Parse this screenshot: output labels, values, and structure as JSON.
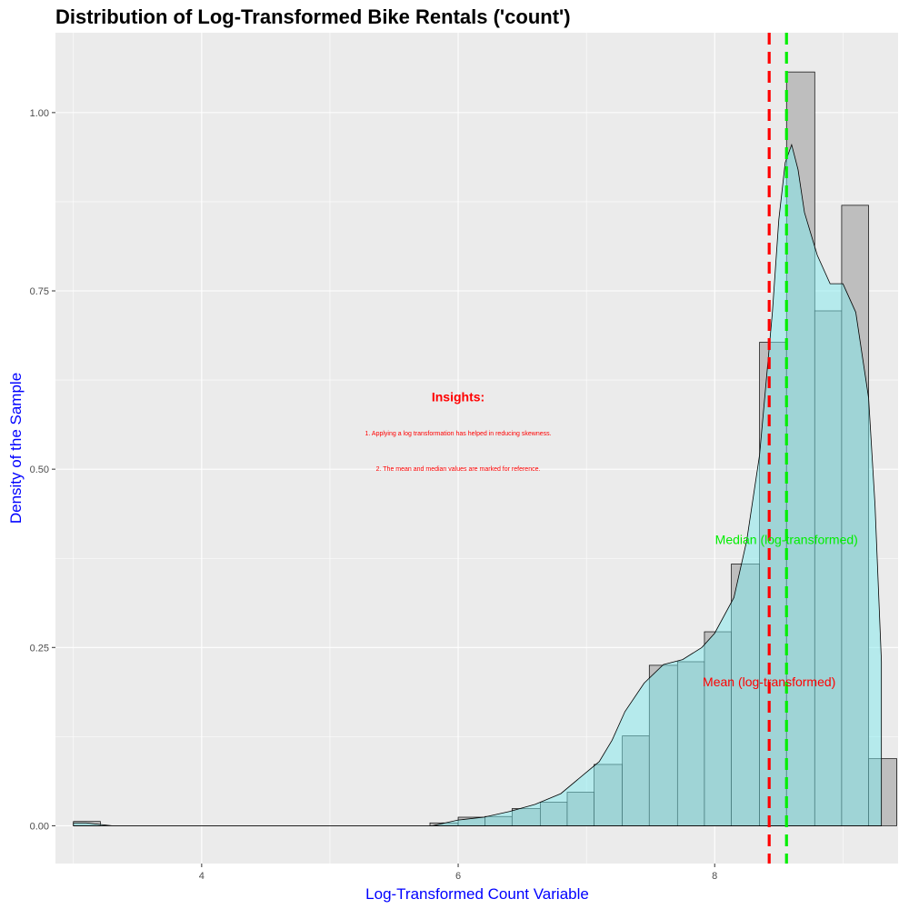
{
  "chart_data": {
    "type": "bar",
    "title": "Distribution of Log-Transformed Bike Rentals ('count')",
    "xlabel": "Log-Transformed Count Variable",
    "ylabel": "Density of the Sample",
    "xlim": [
      2.86,
      9.43
    ],
    "ylim": [
      -0.053,
      1.112
    ],
    "x_ticks": [
      4,
      6,
      8
    ],
    "y_ticks": [
      0.0,
      0.25,
      0.5,
      0.75,
      1.0
    ],
    "y_tick_labels": [
      "0.00",
      "0.25",
      "0.50",
      "0.75",
      "1.00"
    ],
    "grid": true,
    "colors": {
      "panel": "#ebebeb",
      "grid": "#ffffff",
      "histogram_fill": "#bebebe",
      "density_fill": "#7fe9ee",
      "mean_line": "#ff0000",
      "median_line": "#00ee00",
      "axis_title": "#0000ff",
      "insight_text": "#ff0000"
    },
    "histogram": {
      "bin_width": 0.2137,
      "bins": [
        {
          "x0": 3.0,
          "x1": 3.21,
          "density": 0.006
        },
        {
          "x0": 3.21,
          "x1": 3.43,
          "density": 0.0
        },
        {
          "x0": 3.43,
          "x1": 3.64,
          "density": 0.0
        },
        {
          "x0": 3.64,
          "x1": 3.86,
          "density": 0.0
        },
        {
          "x0": 3.86,
          "x1": 4.07,
          "density": 0.0
        },
        {
          "x0": 4.07,
          "x1": 4.28,
          "density": 0.0
        },
        {
          "x0": 4.28,
          "x1": 4.5,
          "density": 0.0
        },
        {
          "x0": 4.5,
          "x1": 4.71,
          "density": 0.0
        },
        {
          "x0": 4.71,
          "x1": 4.93,
          "density": 0.0
        },
        {
          "x0": 4.93,
          "x1": 5.14,
          "density": 0.0
        },
        {
          "x0": 5.14,
          "x1": 5.35,
          "density": 0.0
        },
        {
          "x0": 5.35,
          "x1": 5.57,
          "density": 0.0
        },
        {
          "x0": 5.57,
          "x1": 5.78,
          "density": 0.0
        },
        {
          "x0": 5.78,
          "x1": 6.0,
          "density": 0.004
        },
        {
          "x0": 6.0,
          "x1": 6.21,
          "density": 0.012
        },
        {
          "x0": 6.21,
          "x1": 6.42,
          "density": 0.013
        },
        {
          "x0": 6.42,
          "x1": 6.64,
          "density": 0.024
        },
        {
          "x0": 6.64,
          "x1": 6.85,
          "density": 0.033
        },
        {
          "x0": 6.85,
          "x1": 7.06,
          "density": 0.047
        },
        {
          "x0": 7.06,
          "x1": 7.28,
          "density": 0.086
        },
        {
          "x0": 7.28,
          "x1": 7.49,
          "density": 0.126
        },
        {
          "x0": 7.49,
          "x1": 7.71,
          "density": 0.225
        },
        {
          "x0": 7.71,
          "x1": 7.92,
          "density": 0.23
        },
        {
          "x0": 7.92,
          "x1": 8.13,
          "density": 0.272
        },
        {
          "x0": 8.13,
          "x1": 8.35,
          "density": 0.367
        },
        {
          "x0": 8.35,
          "x1": 8.56,
          "density": 0.678
        },
        {
          "x0": 8.56,
          "x1": 8.78,
          "density": 1.057
        },
        {
          "x0": 8.78,
          "x1": 8.99,
          "density": 0.722
        },
        {
          "x0": 8.99,
          "x1": 9.2,
          "density": 0.87
        },
        {
          "x0": 9.2,
          "x1": 9.42,
          "density": 0.094
        }
      ]
    },
    "density_curve": {
      "x": [
        3.0,
        3.1,
        3.2,
        3.3,
        3.5,
        4.0,
        5.0,
        5.8,
        5.9,
        6.0,
        6.2,
        6.4,
        6.6,
        6.8,
        7.0,
        7.1,
        7.2,
        7.3,
        7.45,
        7.6,
        7.75,
        7.9,
        8.0,
        8.15,
        8.25,
        8.35,
        8.45,
        8.5,
        8.55,
        8.6,
        8.65,
        8.7,
        8.8,
        8.9,
        9.0,
        9.1,
        9.2,
        9.25,
        9.3
      ],
      "y": [
        0.004,
        0.004,
        0.002,
        0.0,
        0.0,
        0.0,
        0.0,
        0.0,
        0.004,
        0.008,
        0.012,
        0.02,
        0.03,
        0.045,
        0.075,
        0.09,
        0.12,
        0.16,
        0.2,
        0.226,
        0.233,
        0.25,
        0.27,
        0.32,
        0.4,
        0.52,
        0.72,
        0.85,
        0.93,
        0.955,
        0.92,
        0.86,
        0.8,
        0.76,
        0.76,
        0.72,
        0.6,
        0.45,
        0.23
      ]
    },
    "mean_x": 8.425,
    "median_x": 8.56,
    "labels": {
      "median": {
        "text": "Median (log-transformed)",
        "x": 8.56,
        "y": 0.4
      },
      "mean": {
        "text": "Mean (log-transformed)",
        "x": 8.425,
        "y": 0.2
      },
      "insights_title": {
        "text": "Insights:",
        "x": 6.0,
        "y": 0.6
      },
      "insight_1": {
        "text": "1. Applying a log transformation has helped in reducing skewness.",
        "x": 6.0,
        "y": 0.55
      },
      "insight_2": {
        "text": "2. The mean and median values are marked for reference.",
        "x": 6.0,
        "y": 0.5
      }
    }
  }
}
